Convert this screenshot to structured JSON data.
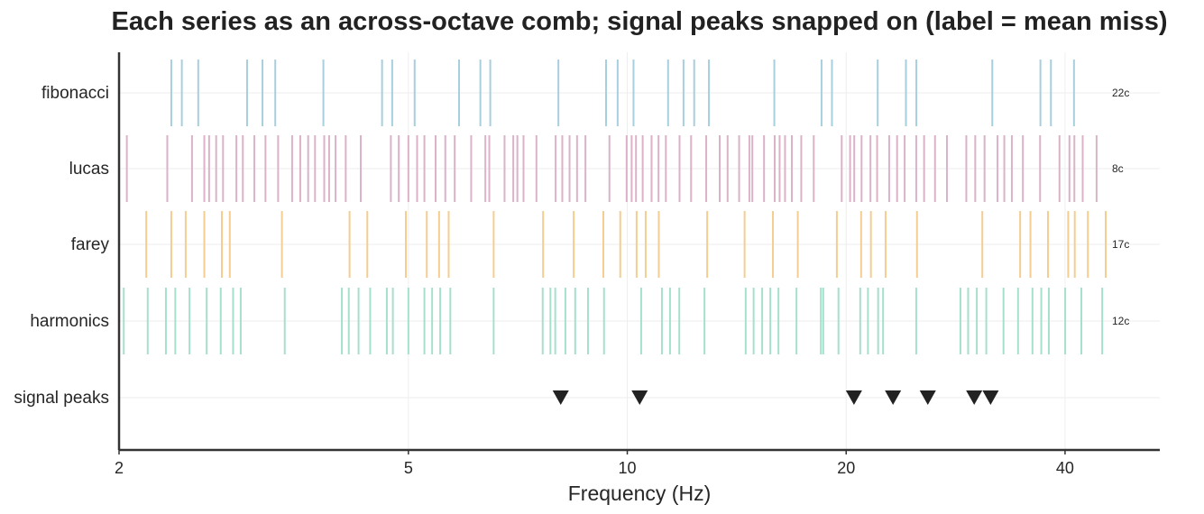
{
  "chart_data": {
    "type": "scatter",
    "title": "Each series as an across-octave comb; signal peaks snapped on (label = mean miss)",
    "xlabel": "Frequency (Hz)",
    "ylabel": "",
    "xscale": "log",
    "xlim": [
      2,
      54
    ],
    "x_ticks": [
      2,
      5,
      10,
      20,
      40
    ],
    "x_tick_labels": [
      "2",
      "5",
      "10",
      "20",
      "40"
    ],
    "grid": true,
    "categories": [
      "fibonacci",
      "lucas",
      "farey",
      "harmonics",
      "signal peaks"
    ],
    "series": [
      {
        "name": "fibonacci",
        "color": "#a8cfdd",
        "mean_miss_label": "22c",
        "x": [
          2.36,
          2.44,
          2.57,
          3.0,
          3.15,
          3.28,
          3.82,
          4.6,
          4.75,
          5.1,
          5.87,
          6.28,
          6.48,
          8.04,
          9.35,
          9.7,
          10.2,
          11.38,
          11.95,
          12.36,
          12.95,
          15.93,
          18.5,
          19.12,
          22.1,
          24.17,
          24.98,
          31.77,
          37.0,
          38.25,
          41.15
        ]
      },
      {
        "name": "lucas",
        "color": "#dbb2c8",
        "mean_miss_label": "8c",
        "x": [
          2.05,
          2.33,
          2.52,
          2.62,
          2.66,
          2.72,
          2.78,
          2.9,
          2.96,
          3.07,
          3.18,
          3.31,
          3.46,
          3.55,
          3.64,
          3.72,
          3.83,
          3.89,
          3.97,
          4.1,
          4.3,
          4.73,
          4.85,
          5.0,
          5.14,
          5.26,
          5.45,
          5.62,
          5.79,
          6.1,
          6.38,
          6.46,
          6.78,
          6.97,
          7.06,
          7.2,
          7.5,
          7.97,
          8.14,
          8.33,
          8.53,
          8.76,
          9.45,
          9.98,
          10.14,
          10.28,
          10.5,
          10.8,
          11.04,
          11.3,
          11.8,
          12.24,
          12.84,
          13.4,
          13.74,
          14.25,
          14.72,
          14.86,
          15.42,
          15.95,
          16.2,
          16.48,
          16.84,
          17.35,
          18.05,
          19.72,
          20.25,
          20.52,
          21.0,
          21.6,
          22.06,
          22.92,
          23.5,
          24.07,
          24.97,
          25.6,
          26.5,
          27.52,
          29.26,
          30.1,
          31.0,
          32.3,
          33.0,
          33.8,
          35.0,
          36.96,
          39.3,
          40.56,
          41.2,
          42.3,
          44.2
        ]
      },
      {
        "name": "farey",
        "color": "#f5cd91",
        "mean_miss_label": "17c",
        "x": [
          2.18,
          2.36,
          2.47,
          2.62,
          2.77,
          2.84,
          3.35,
          4.15,
          4.39,
          4.96,
          5.3,
          5.51,
          5.68,
          6.55,
          7.66,
          8.44,
          9.27,
          9.78,
          10.3,
          10.6,
          11.05,
          12.88,
          14.5,
          15.86,
          17.16,
          19.42,
          20.97,
          21.63,
          22.66,
          25.03,
          30.78,
          34.7,
          35.85,
          37.9,
          40.4,
          41.25,
          43.0,
          45.5
        ]
      },
      {
        "name": "harmonics",
        "color": "#a6e0cc",
        "mean_miss_label": "12c",
        "x": [
          2.03,
          2.19,
          2.32,
          2.39,
          2.5,
          2.64,
          2.76,
          2.87,
          2.94,
          3.38,
          4.05,
          4.14,
          4.27,
          4.43,
          4.67,
          4.76,
          5.0,
          5.26,
          5.39,
          5.53,
          5.71,
          6.55,
          7.65,
          7.84,
          7.96,
          8.22,
          8.48,
          8.83,
          9.29,
          10.45,
          11.16,
          11.45,
          11.79,
          12.77,
          14.55,
          14.92,
          15.33,
          15.73,
          16.14,
          17.09,
          18.46,
          18.6,
          19.52,
          20.91,
          21.43,
          22.13,
          22.48,
          24.97,
          28.72,
          29.43,
          30.25,
          31.17,
          32.92,
          34.47,
          36.08,
          37.1,
          38.0,
          40.02,
          42.12,
          45.0
        ]
      },
      {
        "name": "signal peaks",
        "color": "#222222",
        "marker": "triangle-down",
        "x": [
          8.1,
          10.4,
          20.5,
          23.2,
          25.9,
          30.0,
          31.6
        ]
      }
    ]
  }
}
